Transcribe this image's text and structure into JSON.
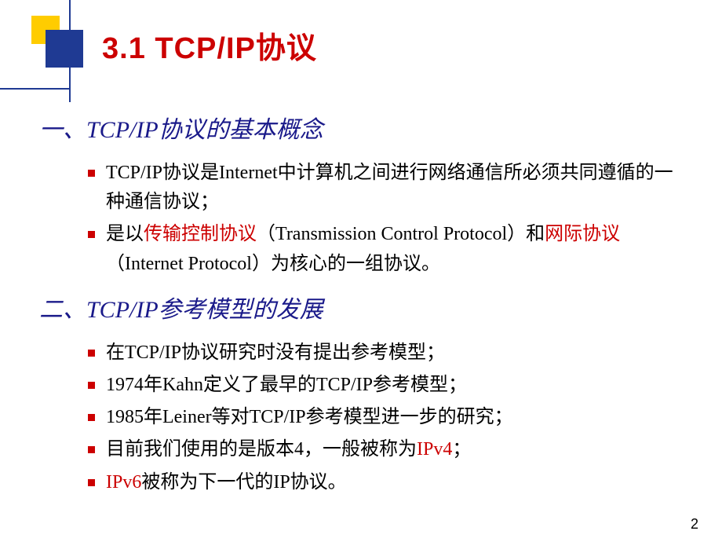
{
  "colors": {
    "accent_red": "#cc0000",
    "accent_yellow": "#ffcc00",
    "accent_navy": "#1f3a93",
    "heading_blue": "#1a1a8a",
    "text_black": "#000000",
    "background": "#ffffff"
  },
  "title": "3.1  TCP/IP协议",
  "sections": [
    {
      "heading": "一、TCP/IP协议的基本概念",
      "bullets": [
        {
          "html": "TCP/IP协议是Internet中计算机之间进行网络通信所必须共同遵循的一种通信协议；"
        },
        {
          "html": "是以<span class=\"hl\">传输控制协议</span>（Transmission Control Protocol）和<span class=\"hl\">网际协议</span>（Internet Protocol）为核心的一组协议。"
        }
      ]
    },
    {
      "heading": "二、TCP/IP参考模型的发展",
      "bullets": [
        {
          "html": "在TCP/IP协议研究时没有提出参考模型；"
        },
        {
          "html": "1974年Kahn定义了最早的TCP/IP参考模型；"
        },
        {
          "html": "1985年Leiner等对TCP/IP参考模型进一步的研究；"
        },
        {
          "html": "目前我们使用的是版本4，一般被称为<span class=\"hl\">IPv4</span>；"
        },
        {
          "html": "<span class=\"hl\">IPv6</span>被称为下一代的IP协议。"
        }
      ]
    }
  ],
  "page_number": "2",
  "typography": {
    "title_fontsize": 38,
    "heading_fontsize": 30,
    "body_fontsize": 24,
    "title_font": "SimHei",
    "heading_font": "KaiTi",
    "body_font": "SimSun"
  }
}
